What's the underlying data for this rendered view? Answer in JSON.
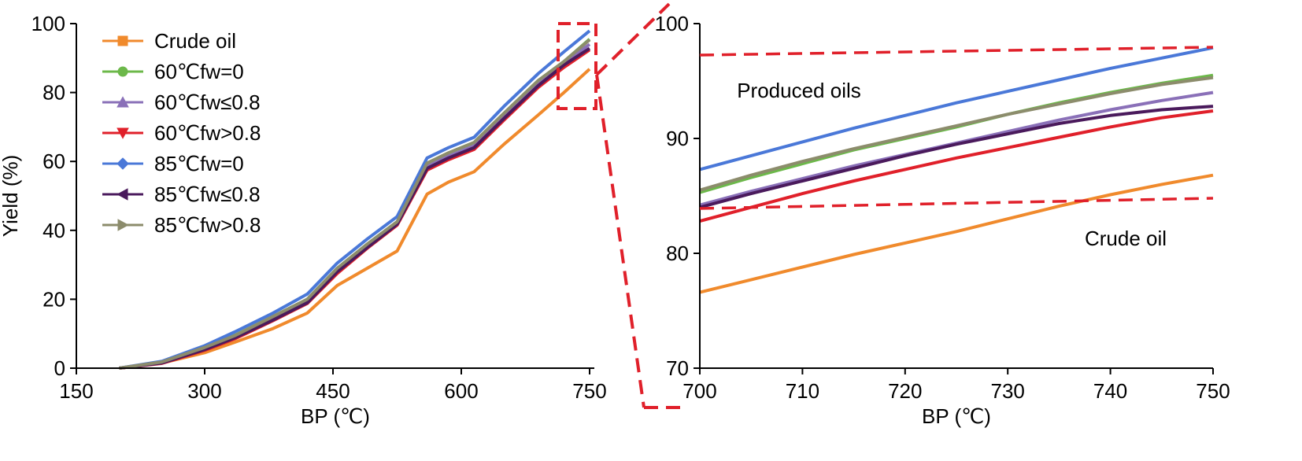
{
  "chart_data": [
    {
      "type": "line",
      "xlabel": "BP (℃)",
      "ylabel": "Yield (%)",
      "xlim": [
        150,
        750
      ],
      "ylim": [
        0,
        100
      ],
      "xticks": [
        "150",
        "300",
        "450",
        "600",
        "750"
      ],
      "yticks": [
        "0",
        "20",
        "40",
        "60",
        "80",
        "100"
      ],
      "legend_position": "top-left",
      "grid": false,
      "series": [
        {
          "name": "Crude oil",
          "color": "#f08a2c",
          "marker": "square",
          "x": [
            200,
            250,
            300,
            335,
            380,
            420,
            455,
            490,
            525,
            560,
            585,
            615,
            650,
            690,
            720,
            750
          ],
          "y": [
            0,
            1.5,
            4.5,
            7.5,
            11.5,
            16,
            24,
            29,
            34,
            50.5,
            54,
            57,
            65,
            73.5,
            80,
            86.8
          ]
        },
        {
          "name": "60℃fw=0",
          "color": "#6cb84a",
          "marker": "circle",
          "x": [
            200,
            250,
            300,
            335,
            380,
            420,
            455,
            490,
            525,
            560,
            585,
            615,
            650,
            690,
            720,
            750
          ],
          "y": [
            0,
            1.8,
            6,
            9.5,
            15,
            20,
            29,
            36,
            42.5,
            59.5,
            62.5,
            65.5,
            74,
            83.5,
            89,
            95.5
          ]
        },
        {
          "name": "60℃fw≤0.8",
          "color": "#8a70b8",
          "marker": "triangle-up",
          "x": [
            200,
            250,
            300,
            335,
            380,
            420,
            455,
            490,
            525,
            560,
            585,
            615,
            650,
            690,
            720,
            750
          ],
          "y": [
            0,
            1.6,
            5.6,
            9,
            14.5,
            19.5,
            28.5,
            35.5,
            42,
            58.5,
            61.5,
            64.5,
            73,
            82.5,
            88.5,
            94
          ]
        },
        {
          "name": "60℃fw>0.8",
          "color": "#e0202a",
          "marker": "triangle-down",
          "x": [
            200,
            250,
            300,
            335,
            380,
            420,
            455,
            490,
            525,
            560,
            585,
            615,
            650,
            690,
            720,
            750
          ],
          "y": [
            0,
            1.4,
            5.2,
            8.5,
            13.8,
            18.8,
            27.5,
            34.8,
            41.5,
            57.5,
            60.5,
            63.5,
            72,
            81.5,
            87.3,
            92.4
          ]
        },
        {
          "name": "85℃fw=0",
          "color": "#4a78d8",
          "marker": "diamond",
          "x": [
            200,
            250,
            300,
            335,
            380,
            420,
            455,
            490,
            525,
            560,
            585,
            615,
            650,
            690,
            720,
            750
          ],
          "y": [
            0,
            2,
            6.5,
            10.5,
            16,
            21.5,
            30.5,
            37.5,
            44,
            61,
            64,
            67,
            76,
            85.5,
            91.8,
            97.9
          ]
        },
        {
          "name": "85℃fw≤0.8",
          "color": "#4a1a5c",
          "marker": "triangle-left",
          "x": [
            200,
            250,
            300,
            335,
            380,
            420,
            455,
            490,
            525,
            560,
            585,
            615,
            650,
            690,
            720,
            750
          ],
          "y": [
            0,
            1.5,
            5.4,
            8.8,
            14,
            19,
            28,
            35,
            41.8,
            58,
            61,
            64,
            72.5,
            82,
            88,
            92.8
          ]
        },
        {
          "name": "85℃fw>0.8",
          "color": "#8c8c6c",
          "marker": "triangle-right",
          "x": [
            200,
            250,
            300,
            335,
            380,
            420,
            455,
            490,
            525,
            560,
            585,
            615,
            650,
            690,
            720,
            750
          ],
          "y": [
            0,
            1.8,
            6,
            9.4,
            15,
            20,
            29,
            36,
            42.5,
            59.5,
            62.5,
            65.5,
            74,
            83.5,
            89,
            95.3
          ]
        }
      ]
    },
    {
      "type": "line",
      "xlabel": "BP (℃)",
      "ylabel": "",
      "xlim": [
        700,
        750
      ],
      "ylim": [
        70,
        100
      ],
      "xticks": [
        "700",
        "710",
        "720",
        "730",
        "740",
        "750"
      ],
      "yticks": [
        "70",
        "80",
        "90",
        "100"
      ],
      "grid": false,
      "annotations": [
        "Produced oils",
        "Crude oil"
      ],
      "series": [
        {
          "color": "#f08a2c",
          "x": [
            700,
            705,
            710,
            715,
            720,
            725,
            730,
            735,
            740,
            745,
            750
          ],
          "y": [
            76.6,
            77.7,
            78.8,
            79.9,
            80.9,
            81.9,
            83,
            84.1,
            85.1,
            86,
            86.8
          ]
        },
        {
          "color": "#6cb84a",
          "x": [
            700,
            705,
            710,
            715,
            720,
            725,
            730,
            735,
            740,
            745,
            750
          ],
          "y": [
            85.3,
            86.6,
            87.8,
            89,
            90,
            91,
            92.1,
            93.1,
            94,
            94.8,
            95.5
          ]
        },
        {
          "color": "#8a70b8",
          "x": [
            700,
            705,
            710,
            715,
            720,
            725,
            730,
            735,
            740,
            745,
            750
          ],
          "y": [
            84.2,
            85.4,
            86.5,
            87.6,
            88.6,
            89.6,
            90.6,
            91.6,
            92.5,
            93.3,
            94
          ]
        },
        {
          "color": "#e0202a",
          "x": [
            700,
            705,
            710,
            715,
            720,
            725,
            730,
            735,
            740,
            745,
            750
          ],
          "y": [
            82.8,
            84,
            85.2,
            86.3,
            87.3,
            88.3,
            89.2,
            90.1,
            91,
            91.8,
            92.4
          ]
        },
        {
          "color": "#4a78d8",
          "x": [
            700,
            705,
            710,
            715,
            720,
            725,
            730,
            735,
            740,
            745,
            750
          ],
          "y": [
            87.3,
            88.5,
            89.7,
            90.9,
            92,
            93.1,
            94.1,
            95.1,
            96.1,
            97,
            97.9
          ]
        },
        {
          "color": "#4a1a5c",
          "x": [
            700,
            705,
            710,
            715,
            720,
            725,
            730,
            735,
            740,
            745,
            750
          ],
          "y": [
            84,
            85.2,
            86.3,
            87.4,
            88.5,
            89.5,
            90.4,
            91.3,
            92,
            92.5,
            92.8
          ]
        },
        {
          "color": "#8c8c6c",
          "x": [
            700,
            705,
            710,
            715,
            720,
            725,
            730,
            735,
            740,
            745,
            750
          ],
          "y": [
            85.5,
            86.8,
            88,
            89.1,
            90.1,
            91.1,
            92.1,
            93,
            93.9,
            94.7,
            95.3
          ]
        }
      ]
    }
  ]
}
